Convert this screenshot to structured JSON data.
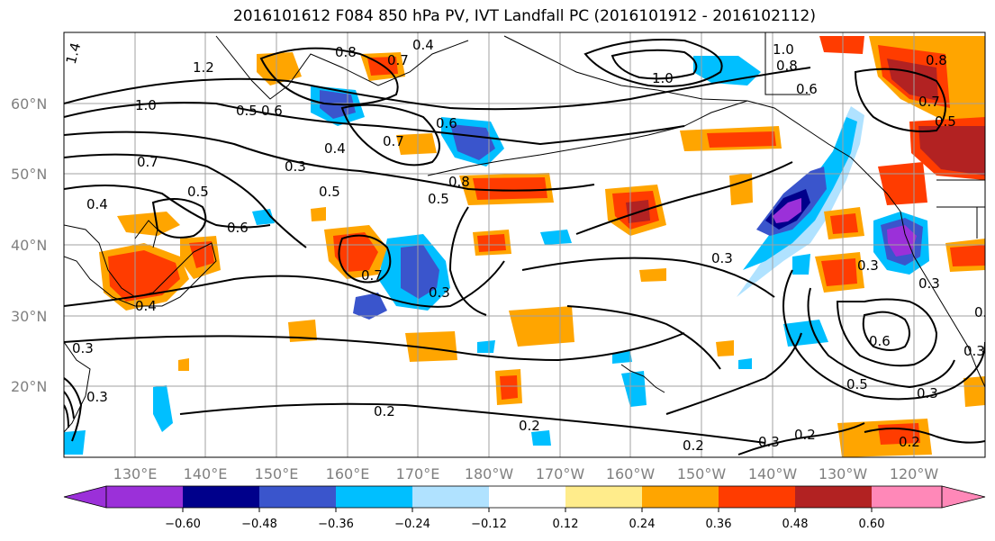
{
  "title": "2016101612 F084 850 hPa PV, IVT Landfall PC (2016101912 - 2016102112)",
  "lat_labels": [
    "60°N",
    "50°N",
    "40°N",
    "30°N",
    "20°N"
  ],
  "lon_labels": [
    "130°E",
    "140°E",
    "150°E",
    "160°E",
    "170°E",
    "180°W",
    "170°W",
    "160°W",
    "150°W",
    "140°W",
    "130°W",
    "120°W"
  ],
  "colorbar": {
    "ticks": [
      "−0.60",
      "−0.48",
      "−0.36",
      "−0.24",
      "−0.12",
      "0.12",
      "0.24",
      "0.36",
      "0.48",
      "0.60"
    ],
    "colors": [
      "#9b30d9",
      "#00008b",
      "#3a55cc",
      "#00bfff",
      "#b0e2ff",
      "#ffffff",
      "#ffec8b",
      "#ffa500",
      "#ff3c00",
      "#b22222",
      "#ff88b8"
    ]
  },
  "contour_labels": [
    "1.4",
    "1.2",
    "1.0",
    "0.7",
    "0.4",
    "0.5",
    "0.6",
    "0.3",
    "0.4",
    "0.8",
    "0.6",
    "0.4",
    "0.7",
    "0.6",
    "0.7",
    "0.3",
    "0.5",
    "0.5",
    "0.8",
    "0.7",
    "0.5",
    "0.3",
    "1.0",
    "0.8",
    "0.6",
    "0.8",
    "1.0",
    "0.7",
    "0.5",
    "0.3",
    "0.3",
    "0.6",
    "0.5",
    "0.3",
    "0.2",
    "0.2",
    "0.2",
    "0.3",
    "0.2",
    "0.2",
    "0.4",
    "0.3",
    "0.3",
    "0.6",
    "0.3"
  ],
  "colors": {
    "purple": "#9b30d9",
    "navy": "#00008b",
    "blue": "#3a55cc",
    "sky": "#00bfff",
    "lightblue": "#b0e2ff",
    "yellow": "#ffec8b",
    "orange": "#ffa500",
    "redorange": "#ff3c00",
    "darkred": "#b22222",
    "pink": "#ff88b8"
  }
}
